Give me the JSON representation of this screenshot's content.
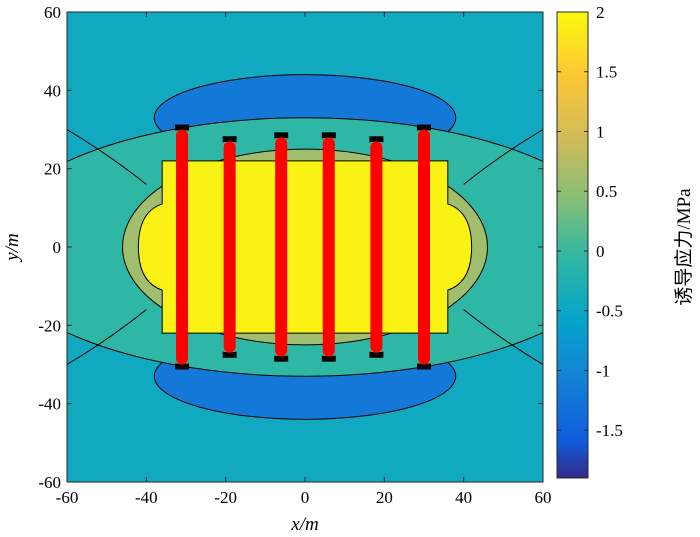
{
  "chart_data": {
    "type": "contour",
    "xlabel": "x/m",
    "ylabel": "y/m",
    "xlim": [
      -60,
      60
    ],
    "ylim": [
      -60,
      60
    ],
    "xticks": [
      -60,
      -40,
      -20,
      0,
      20,
      40,
      60
    ],
    "yticks": [
      -60,
      -40,
      -20,
      0,
      20,
      40,
      60
    ],
    "colorbar": {
      "label": "诱导应力/MPa",
      "range": [
        -1.9,
        2.0
      ],
      "ticks": [
        "2",
        "1.5",
        "1",
        "0.5",
        "0",
        "-0.5",
        "-1",
        "-1.5"
      ],
      "tick_values": [
        2,
        1.5,
        1,
        0.5,
        0,
        -0.5,
        -1,
        -1.5
      ],
      "colormap": [
        "#352a87",
        "#0f5cdd",
        "#1481d6",
        "#06a4ca",
        "#2eb7a4",
        "#87bf77",
        "#d1bb59",
        "#fec832",
        "#f9fb0e"
      ]
    },
    "contour_levels": [
      -1.5,
      -1.0,
      -0.5,
      0.0,
      0.5,
      1.0,
      1.5
    ],
    "background_value": -0.3,
    "fractures": [
      {
        "x": -31,
        "y_top": 30,
        "y_bottom": -30
      },
      {
        "x": -19,
        "y_top": 27,
        "y_bottom": -27
      },
      {
        "x": -6,
        "y_top": 28,
        "y_bottom": -28
      },
      {
        "x": 6,
        "y_top": 28,
        "y_bottom": -28
      },
      {
        "x": 18,
        "y_top": 27,
        "y_bottom": -27
      },
      {
        "x": 30,
        "y_top": 30,
        "y_bottom": -30
      }
    ],
    "fracture_color": "#ff0000"
  }
}
